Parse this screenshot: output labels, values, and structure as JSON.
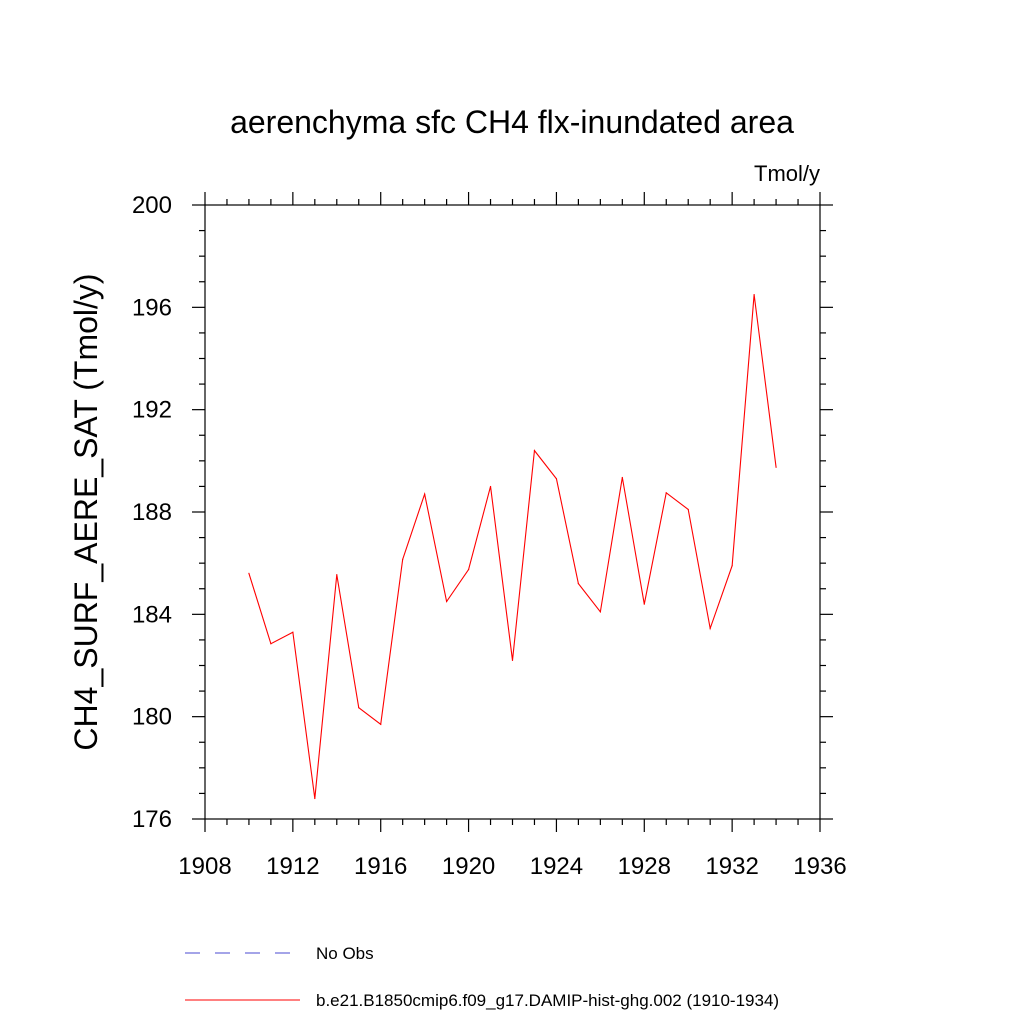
{
  "chart_data": {
    "type": "line",
    "title": "aerenchyma sfc CH4 flx-inundated area",
    "units_label": "Tmol/y",
    "ylabel": "CH4_SURF_AERE_SAT  (Tmol/y)",
    "xlabel": "",
    "xlim": [
      1908,
      1936
    ],
    "ylim": [
      176,
      200
    ],
    "x_ticks": [
      1908,
      1912,
      1916,
      1920,
      1924,
      1928,
      1932,
      1936
    ],
    "x_tick_labels": [
      "1908",
      "1912",
      "1916",
      "1920",
      "1924",
      "1928",
      "1932",
      "1936"
    ],
    "y_ticks": [
      176,
      180,
      184,
      188,
      192,
      196,
      200
    ],
    "y_tick_labels": [
      "176",
      "180",
      "184",
      "188",
      "192",
      "196",
      "200"
    ],
    "grid": false,
    "legend_position": "bottom",
    "series": [
      {
        "name": "b.e21.B1850cmip6.f09_g17.DAMIP-hist-ghg.002 (1910-1934)",
        "color": "#ff0000",
        "style": "solid",
        "x": [
          1910,
          1911,
          1912,
          1913,
          1914,
          1915,
          1916,
          1917,
          1918,
          1919,
          1920,
          1921,
          1922,
          1923,
          1924,
          1925,
          1926,
          1927,
          1928,
          1929,
          1930,
          1931,
          1932,
          1933,
          1934
        ],
        "values": [
          185.6,
          182.85,
          183.3,
          176.8,
          185.55,
          180.35,
          179.7,
          186.15,
          188.7,
          184.5,
          185.75,
          189.0,
          182.2,
          190.4,
          189.3,
          185.2,
          184.1,
          189.35,
          184.4,
          188.75,
          188.1,
          183.45,
          185.9,
          196.5,
          189.75
        ]
      }
    ],
    "legend": [
      {
        "label": "No Obs",
        "color": "#4a4ad0",
        "style": "dashed"
      },
      {
        "label": "b.e21.B1850cmip6.f09_g17.DAMIP-hist-ghg.002 (1910-1934)",
        "color": "#ff0000",
        "style": "solid"
      }
    ]
  }
}
